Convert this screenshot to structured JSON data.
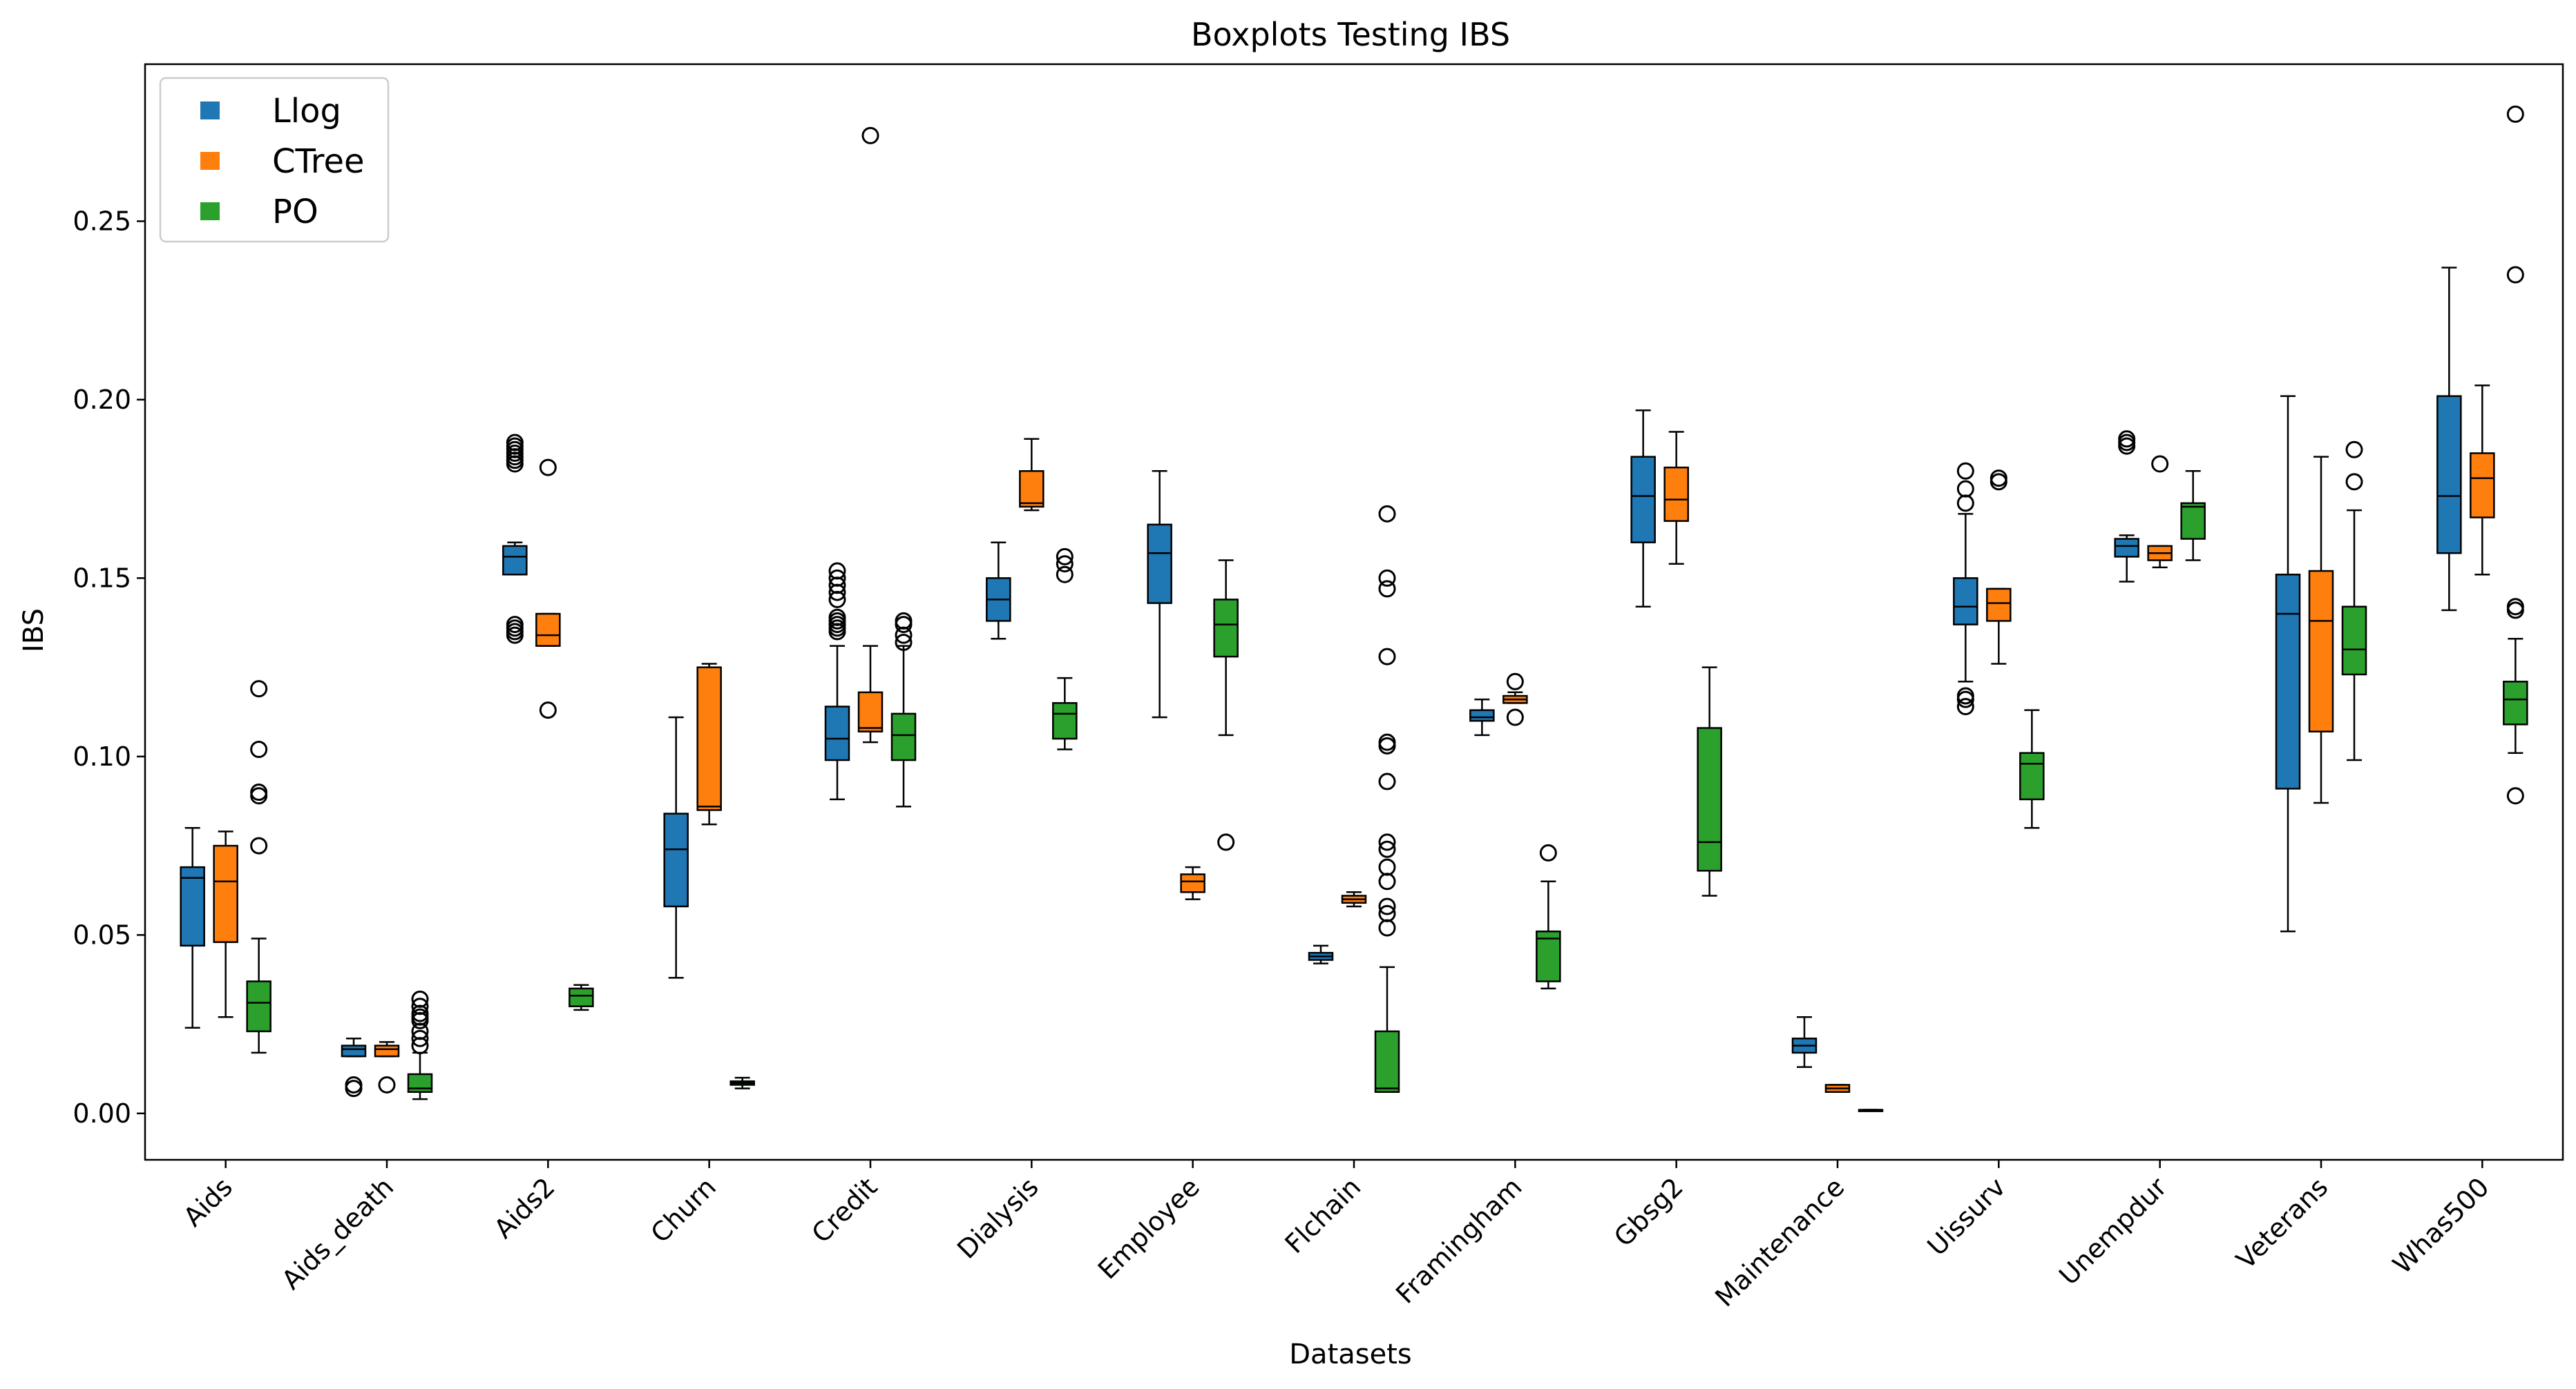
{
  "chart_data": {
    "type": "boxplot",
    "title": "Boxplots Testing IBS",
    "xlabel": "Datasets",
    "ylabel": "IBS",
    "ylim": [
      -0.013,
      0.294
    ],
    "yticks": [
      0.0,
      0.05,
      0.1,
      0.15,
      0.2,
      0.25
    ],
    "ytick_labels": [
      "0.00",
      "0.05",
      "0.10",
      "0.15",
      "0.20",
      "0.25"
    ],
    "legend_position": "upper-left",
    "categories": [
      "Aids",
      "Aids_death",
      "Aids2",
      "Churn",
      "Credit",
      "Dialysis",
      "Employee",
      "Flchain",
      "Framingham",
      "Gbsg2",
      "Maintenance",
      "Uissurv",
      "Unempdur",
      "Veterans",
      "Whas500"
    ],
    "series": [
      {
        "name": "Llog",
        "color": "#1f77b4",
        "boxes": [
          {
            "whislo": 0.024,
            "q1": 0.047,
            "med": 0.066,
            "q3": 0.069,
            "whishi": 0.08,
            "fliers": []
          },
          {
            "whislo": 0.016,
            "q1": 0.016,
            "med": 0.018,
            "q3": 0.019,
            "whishi": 0.021,
            "fliers": [
              0.007,
              0.008
            ]
          },
          {
            "whislo": 0.151,
            "q1": 0.151,
            "med": 0.156,
            "q3": 0.159,
            "whishi": 0.16,
            "fliers": [
              0.134,
              0.135,
              0.136,
              0.137,
              0.182,
              0.183,
              0.184,
              0.185,
              0.186,
              0.187,
              0.188
            ]
          },
          {
            "whislo": 0.038,
            "q1": 0.058,
            "med": 0.074,
            "q3": 0.084,
            "whishi": 0.111,
            "fliers": []
          },
          {
            "whislo": 0.088,
            "q1": 0.099,
            "med": 0.105,
            "q3": 0.114,
            "whishi": 0.131,
            "fliers": [
              0.135,
              0.136,
              0.137,
              0.138,
              0.139,
              0.144,
              0.146,
              0.148,
              0.15,
              0.152
            ]
          },
          {
            "whislo": 0.133,
            "q1": 0.138,
            "med": 0.144,
            "q3": 0.15,
            "whishi": 0.16,
            "fliers": []
          },
          {
            "whislo": 0.111,
            "q1": 0.143,
            "med": 0.157,
            "q3": 0.165,
            "whishi": 0.18,
            "fliers": []
          },
          {
            "whislo": 0.042,
            "q1": 0.043,
            "med": 0.044,
            "q3": 0.045,
            "whishi": 0.047,
            "fliers": []
          },
          {
            "whislo": 0.106,
            "q1": 0.11,
            "med": 0.111,
            "q3": 0.113,
            "whishi": 0.116,
            "fliers": []
          },
          {
            "whislo": 0.142,
            "q1": 0.16,
            "med": 0.173,
            "q3": 0.184,
            "whishi": 0.197,
            "fliers": []
          },
          {
            "whislo": 0.013,
            "q1": 0.017,
            "med": 0.019,
            "q3": 0.021,
            "whishi": 0.027,
            "fliers": []
          },
          {
            "whislo": 0.121,
            "q1": 0.137,
            "med": 0.142,
            "q3": 0.15,
            "whishi": 0.168,
            "fliers": [
              0.114,
              0.116,
              0.117,
              0.171,
              0.175,
              0.18
            ]
          },
          {
            "whislo": 0.149,
            "q1": 0.156,
            "med": 0.159,
            "q3": 0.161,
            "whishi": 0.162,
            "fliers": [
              0.187,
              0.188,
              0.189
            ]
          },
          {
            "whislo": 0.051,
            "q1": 0.091,
            "med": 0.14,
            "q3": 0.151,
            "whishi": 0.201,
            "fliers": []
          },
          {
            "whislo": 0.141,
            "q1": 0.157,
            "med": 0.173,
            "q3": 0.201,
            "whishi": 0.237,
            "fliers": []
          }
        ]
      },
      {
        "name": "CTree",
        "color": "#ff7f0e",
        "boxes": [
          {
            "whislo": 0.027,
            "q1": 0.048,
            "med": 0.065,
            "q3": 0.075,
            "whishi": 0.079,
            "fliers": []
          },
          {
            "whislo": 0.016,
            "q1": 0.016,
            "med": 0.018,
            "q3": 0.019,
            "whishi": 0.02,
            "fliers": [
              0.008
            ]
          },
          {
            "whislo": 0.131,
            "q1": 0.131,
            "med": 0.134,
            "q3": 0.14,
            "whishi": 0.14,
            "fliers": [
              0.113,
              0.181
            ]
          },
          {
            "whislo": 0.081,
            "q1": 0.085,
            "med": 0.086,
            "q3": 0.125,
            "whishi": 0.126,
            "fliers": []
          },
          {
            "whislo": 0.104,
            "q1": 0.107,
            "med": 0.108,
            "q3": 0.118,
            "whishi": 0.131,
            "fliers": [
              0.274
            ]
          },
          {
            "whislo": 0.169,
            "q1": 0.17,
            "med": 0.171,
            "q3": 0.18,
            "whishi": 0.189,
            "fliers": []
          },
          {
            "whislo": 0.06,
            "q1": 0.062,
            "med": 0.065,
            "q3": 0.067,
            "whishi": 0.069,
            "fliers": []
          },
          {
            "whislo": 0.058,
            "q1": 0.059,
            "med": 0.06,
            "q3": 0.061,
            "whishi": 0.062,
            "fliers": []
          },
          {
            "whislo": 0.115,
            "q1": 0.115,
            "med": 0.116,
            "q3": 0.117,
            "whishi": 0.118,
            "fliers": [
              0.111,
              0.121
            ]
          },
          {
            "whislo": 0.154,
            "q1": 0.166,
            "med": 0.172,
            "q3": 0.181,
            "whishi": 0.191,
            "fliers": []
          },
          {
            "whislo": 0.006,
            "q1": 0.006,
            "med": 0.007,
            "q3": 0.008,
            "whishi": 0.008,
            "fliers": []
          },
          {
            "whislo": 0.126,
            "q1": 0.138,
            "med": 0.143,
            "q3": 0.147,
            "whishi": 0.147,
            "fliers": [
              0.177,
              0.178
            ]
          },
          {
            "whislo": 0.153,
            "q1": 0.155,
            "med": 0.157,
            "q3": 0.159,
            "whishi": 0.159,
            "fliers": [
              0.182
            ]
          },
          {
            "whislo": 0.087,
            "q1": 0.107,
            "med": 0.138,
            "q3": 0.152,
            "whishi": 0.184,
            "fliers": []
          },
          {
            "whislo": 0.151,
            "q1": 0.167,
            "med": 0.178,
            "q3": 0.185,
            "whishi": 0.204,
            "fliers": []
          }
        ]
      },
      {
        "name": "PO",
        "color": "#2ca02c",
        "boxes": [
          {
            "whislo": 0.017,
            "q1": 0.023,
            "med": 0.031,
            "q3": 0.037,
            "whishi": 0.049,
            "fliers": [
              0.075,
              0.089,
              0.09,
              0.102,
              0.119
            ]
          },
          {
            "whislo": 0.004,
            "q1": 0.006,
            "med": 0.007,
            "q3": 0.011,
            "whishi": 0.017,
            "fliers": [
              0.019,
              0.021,
              0.023,
              0.026,
              0.027,
              0.028,
              0.03,
              0.032
            ]
          },
          {
            "whislo": 0.029,
            "q1": 0.03,
            "med": 0.033,
            "q3": 0.035,
            "whishi": 0.036,
            "fliers": []
          },
          {
            "whislo": 0.007,
            "q1": 0.008,
            "med": 0.0085,
            "q3": 0.009,
            "whishi": 0.01,
            "fliers": []
          },
          {
            "whislo": 0.086,
            "q1": 0.099,
            "med": 0.106,
            "q3": 0.112,
            "whishi": 0.131,
            "fliers": [
              0.132,
              0.134,
              0.137,
              0.138
            ]
          },
          {
            "whislo": 0.102,
            "q1": 0.105,
            "med": 0.112,
            "q3": 0.115,
            "whishi": 0.122,
            "fliers": [
              0.151,
              0.154,
              0.156
            ]
          },
          {
            "whislo": 0.106,
            "q1": 0.128,
            "med": 0.137,
            "q3": 0.144,
            "whishi": 0.155,
            "fliers": [
              0.076
            ]
          },
          {
            "whislo": 0.006,
            "q1": 0.006,
            "med": 0.007,
            "q3": 0.023,
            "whishi": 0.041,
            "fliers": [
              0.052,
              0.056,
              0.058,
              0.065,
              0.069,
              0.074,
              0.076,
              0.093,
              0.103,
              0.104,
              0.128,
              0.147,
              0.15,
              0.168
            ]
          },
          {
            "whislo": 0.035,
            "q1": 0.037,
            "med": 0.049,
            "q3": 0.051,
            "whishi": 0.065,
            "fliers": [
              0.073
            ]
          },
          {
            "whislo": 0.061,
            "q1": 0.068,
            "med": 0.076,
            "q3": 0.108,
            "whishi": 0.125,
            "fliers": []
          },
          {
            "whislo": 0.001,
            "q1": 0.001,
            "med": 0.001,
            "q3": 0.001,
            "whishi": 0.001,
            "fliers": []
          },
          {
            "whislo": 0.08,
            "q1": 0.088,
            "med": 0.098,
            "q3": 0.101,
            "whishi": 0.113,
            "fliers": []
          },
          {
            "whislo": 0.155,
            "q1": 0.161,
            "med": 0.17,
            "q3": 0.171,
            "whishi": 0.18,
            "fliers": []
          },
          {
            "whislo": 0.099,
            "q1": 0.123,
            "med": 0.13,
            "q3": 0.142,
            "whishi": 0.169,
            "fliers": [
              0.177,
              0.186
            ]
          },
          {
            "whislo": 0.101,
            "q1": 0.109,
            "med": 0.116,
            "q3": 0.121,
            "whishi": 0.133,
            "fliers": [
              0.089,
              0.141,
              0.142,
              0.235,
              0.28
            ]
          }
        ]
      }
    ]
  }
}
